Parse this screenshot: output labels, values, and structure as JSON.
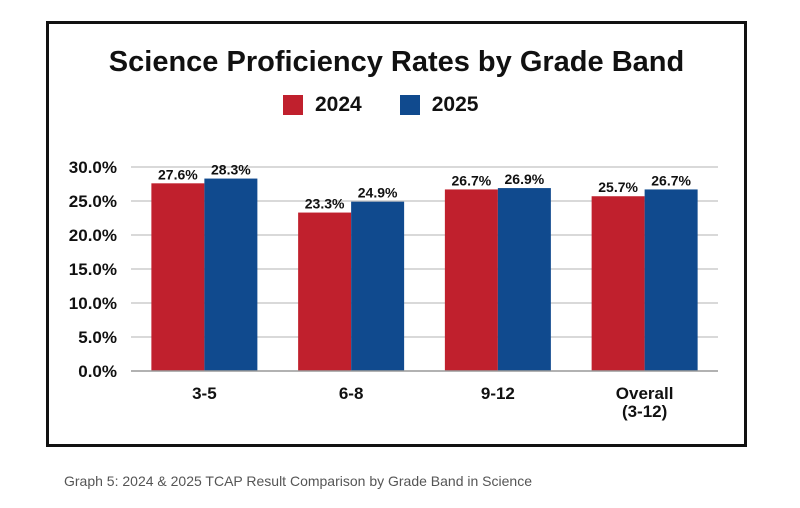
{
  "chart_data": {
    "type": "bar",
    "title": "Science Proficiency Rates by Grade Band",
    "categories": [
      [
        "3-5"
      ],
      [
        "6-8"
      ],
      [
        "9-12"
      ],
      [
        "Overall",
        "(3-12)"
      ]
    ],
    "series": [
      {
        "name": "2024",
        "color": "#c0202d",
        "values": [
          27.6,
          23.3,
          26.7,
          25.7
        ],
        "labels": [
          "27.6%",
          "23.3%",
          "26.7%",
          "25.7%"
        ]
      },
      {
        "name": "2025",
        "color": "#104a8e",
        "values": [
          28.3,
          24.9,
          26.9,
          26.7
        ],
        "labels": [
          "28.3%",
          "24.9%",
          "26.9%",
          "26.7%"
        ]
      }
    ],
    "ylim": [
      0,
      30
    ],
    "yticks": [
      "0.0%",
      "5.0%",
      "10.0%",
      "15.0%",
      "20.0%",
      "25.0%",
      "30.0%"
    ],
    "ytick_values": [
      0,
      5,
      10,
      15,
      20,
      25,
      30
    ],
    "grid": true,
    "legend_position": "top-center"
  },
  "caption": "Graph 5: 2024 & 2025 TCAP Result Comparison by Grade Band in Science"
}
